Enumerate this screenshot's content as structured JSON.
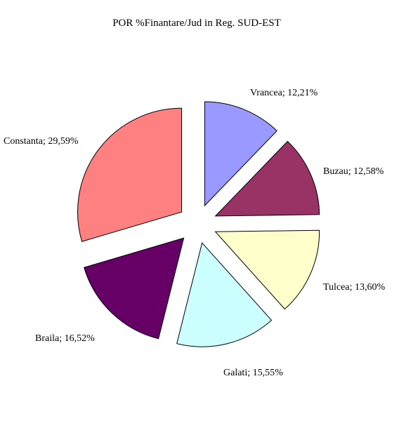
{
  "chart_data": {
    "type": "pie",
    "title": "POR %Finantare/Jud in Reg. SUD-EST",
    "exploded": true,
    "slices": [
      {
        "label": "Vrancea; 12,21%",
        "name": "Vrancea",
        "value": 12.21,
        "color": "#9999FF"
      },
      {
        "label": "Buzau; 12,58%",
        "name": "Buzau",
        "value": 12.58,
        "color": "#993366"
      },
      {
        "label": "Tulcea; 13,60%",
        "name": "Tulcea",
        "value": 13.6,
        "color": "#FFFFCC"
      },
      {
        "label": "Galati; 15,55%",
        "name": "Galati",
        "value": 15.55,
        "color": "#CCFFFF"
      },
      {
        "label": "Braila; 16,52%",
        "name": "Braila",
        "value": 16.52,
        "color": "#660066"
      },
      {
        "label": "Constanta; 29,59%",
        "name": "Constanta",
        "value": 29.59,
        "color": "#FF8080"
      }
    ]
  }
}
